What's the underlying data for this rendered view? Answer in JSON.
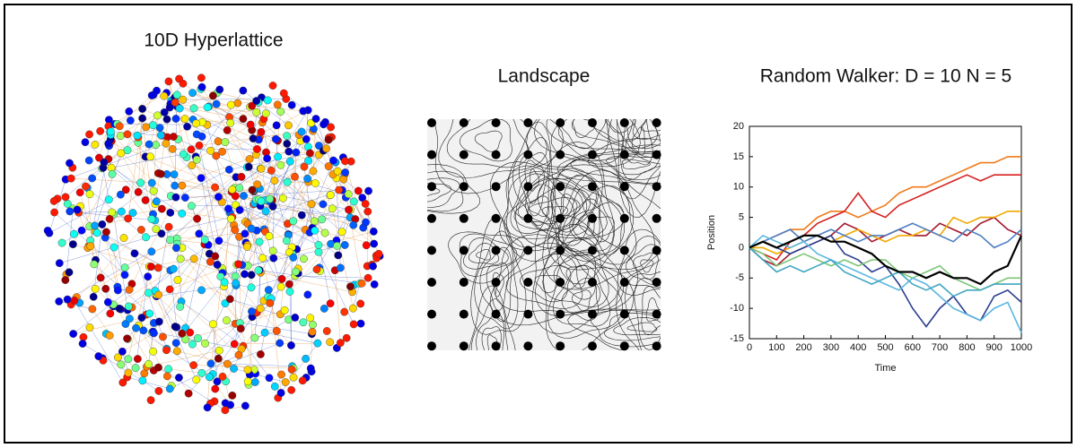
{
  "hyperlattice": {
    "title": "10D Hyperlattice"
  },
  "landscape": {
    "title": "Landscape"
  },
  "chart_data": {
    "type": "line",
    "title": "Random Walker:  D = 10  N = 5",
    "x_label": "Time",
    "y_label": "Position",
    "x": [
      0,
      50,
      100,
      150,
      200,
      250,
      300,
      350,
      400,
      450,
      500,
      550,
      600,
      650,
      700,
      750,
      800,
      850,
      900,
      950,
      1000
    ],
    "series": [
      {
        "color": "#f07a1a",
        "values": [
          0,
          1,
          2,
          3,
          3,
          5,
          6,
          6,
          5,
          6,
          7,
          9,
          10,
          10,
          11,
          12,
          13,
          14,
          14,
          15,
          15
        ]
      },
      {
        "color": "#d62020",
        "values": [
          0,
          -1,
          -2,
          1,
          2,
          4,
          5,
          6,
          9,
          6,
          5,
          7,
          8,
          9,
          10,
          11,
          12,
          11,
          12,
          12,
          12
        ]
      },
      {
        "color": "#a3172c",
        "values": [
          0,
          -2,
          -3,
          -1,
          0,
          1,
          2,
          4,
          3,
          1,
          2,
          3,
          2,
          2,
          4,
          3,
          2,
          4,
          5,
          3,
          2
        ]
      },
      {
        "color": "#f0a800",
        "values": [
          0,
          0,
          -1,
          0,
          1,
          2,
          1,
          2,
          3,
          2,
          1,
          2,
          2,
          3,
          2,
          5,
          4,
          5,
          5,
          6,
          6
        ]
      },
      {
        "color": "#2b3f8f",
        "values": [
          0,
          1,
          0,
          -1,
          0,
          1,
          2,
          -1,
          -2,
          -4,
          -3,
          -6,
          -10,
          -13,
          -10,
          -8,
          -11,
          -12,
          -8,
          -7,
          -9
        ]
      },
      {
        "color": "#4f7fc1",
        "values": [
          0,
          1,
          2,
          3,
          1,
          2,
          3,
          2,
          1,
          2,
          2,
          3,
          4,
          3,
          2,
          1,
          3,
          2,
          0,
          1,
          3
        ]
      },
      {
        "color": "#7cc576",
        "values": [
          0,
          -1,
          -3,
          -2,
          -1,
          -2,
          -3,
          -2,
          -3,
          -2,
          -2,
          -4,
          -5,
          -4,
          -3,
          -5,
          -6,
          -7,
          -6,
          -5,
          -5
        ]
      },
      {
        "color": "#5bb7e0",
        "values": [
          0,
          2,
          1,
          0,
          1,
          -1,
          -2,
          -3,
          -4,
          -5,
          -6,
          -7,
          -5,
          -6,
          -8,
          -10,
          -11,
          -12,
          -10,
          -9,
          -14
        ]
      },
      {
        "color": "#3fa6c0",
        "values": [
          0,
          -2,
          -4,
          -3,
          -4,
          -3,
          -2,
          -4,
          -5,
          -6,
          -5,
          -4,
          -6,
          -7,
          -6,
          -8,
          -7,
          -7,
          -6,
          -6,
          -6
        ]
      },
      {
        "color": "#000000",
        "values": [
          0,
          1,
          0,
          1,
          2,
          2,
          1,
          1,
          0,
          -1,
          -3,
          -4,
          -4,
          -5,
          -4,
          -5,
          -5,
          -6,
          -4,
          -3,
          2
        ]
      }
    ],
    "xlim": [
      0,
      1000
    ],
    "ylim": [
      -15,
      20
    ],
    "xticks": [
      0,
      100,
      200,
      300,
      400,
      500,
      600,
      700,
      800,
      900,
      1000
    ],
    "yticks": [
      -15,
      -10,
      -5,
      0,
      5,
      10,
      15,
      20
    ]
  }
}
